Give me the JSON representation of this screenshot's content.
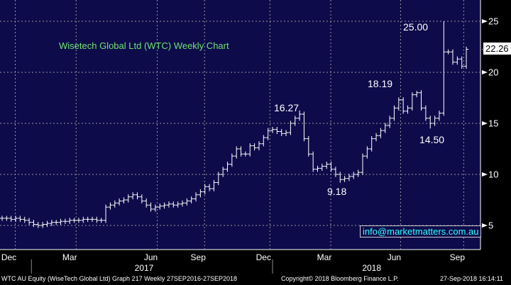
{
  "chart_data": {
    "type": "ohlc",
    "title": "Wisetech Global Ltd (WTC)  Weekly Chart",
    "ylim": [
      3,
      26
    ],
    "yticks": [
      5,
      10,
      15,
      20,
      25
    ],
    "x_labels": [
      {
        "label": "Dec",
        "week": 1.5
      },
      {
        "label": "Mar",
        "week": 15
      },
      {
        "label": "Jun",
        "week": 33
      },
      {
        "label": "Sep",
        "week": 43.5
      },
      {
        "label": "Dec",
        "week": 58
      },
      {
        "label": "Mar",
        "week": 71.5
      },
      {
        "label": "Jun",
        "week": 87
      },
      {
        "label": "Sep",
        "week": 101
      }
    ],
    "year_labels": [
      {
        "label": "2017",
        "week": 31.5
      },
      {
        "label": "2018",
        "week": 82
      }
    ],
    "year_dividers": [
      6.5,
      60
    ],
    "closes": [
      5.7,
      5.7,
      5.6,
      5.7,
      5.6,
      5.5,
      5.3,
      5.1,
      5.0,
      5.1,
      5.2,
      5.3,
      5.3,
      5.4,
      5.4,
      5.5,
      5.5,
      5.5,
      5.6,
      5.6,
      5.6,
      5.5,
      5.5,
      6.8,
      7.0,
      7.2,
      7.4,
      7.5,
      7.8,
      8.0,
      7.8,
      7.4,
      7.0,
      6.6,
      6.8,
      6.9,
      7.0,
      7.1,
      7.0,
      7.1,
      7.2,
      7.4,
      7.6,
      8.0,
      8.3,
      8.8,
      8.6,
      9.2,
      10.0,
      10.5,
      11.0,
      11.8,
      12.5,
      12.0,
      12.0,
      12.8,
      12.6,
      13.0,
      13.6,
      14.3,
      14.4,
      14.2,
      14.0,
      14.1,
      15.0,
      15.5,
      15.9,
      13.5,
      12.0,
      10.5,
      10.6,
      10.8,
      11.0,
      10.5,
      10.0,
      9.5,
      9.6,
      9.8,
      10.0,
      10.2,
      11.8,
      12.5,
      13.5,
      13.8,
      14.3,
      14.8,
      15.5,
      16.5,
      17.3,
      16.2,
      16.5,
      17.8,
      18.0,
      16.5,
      15.5,
      15.0,
      15.5,
      16.0,
      22.0,
      22.0,
      21.0,
      21.3,
      20.6,
      22.26
    ],
    "high_overrides": {
      "66": 16.27,
      "92": 18.19,
      "98": 25.0
    },
    "low_overrides": {
      "75": 9.18,
      "95": 14.5
    },
    "annotations": [
      {
        "text": "25.00"
      },
      {
        "text": "18.19"
      },
      {
        "text": "16.27"
      },
      {
        "text": "14.50"
      },
      {
        "text": "9.18"
      }
    ],
    "last_price": "22.26"
  },
  "email": "info@marketmatters.com.au",
  "footer": {
    "left": "WTC AU Equity (WiseTech Global Ltd) Graph 217  Weekly 27SEP2016-27SEP2018",
    "center": "Copyright© 2018 Bloomberg Finance L.P.",
    "right": "27-Sep-2018 16:14:11"
  },
  "colors": {
    "bg": "#0d0b4a",
    "bar": "#ffffff",
    "title": "#6fe36f",
    "email": "#33ffff"
  }
}
